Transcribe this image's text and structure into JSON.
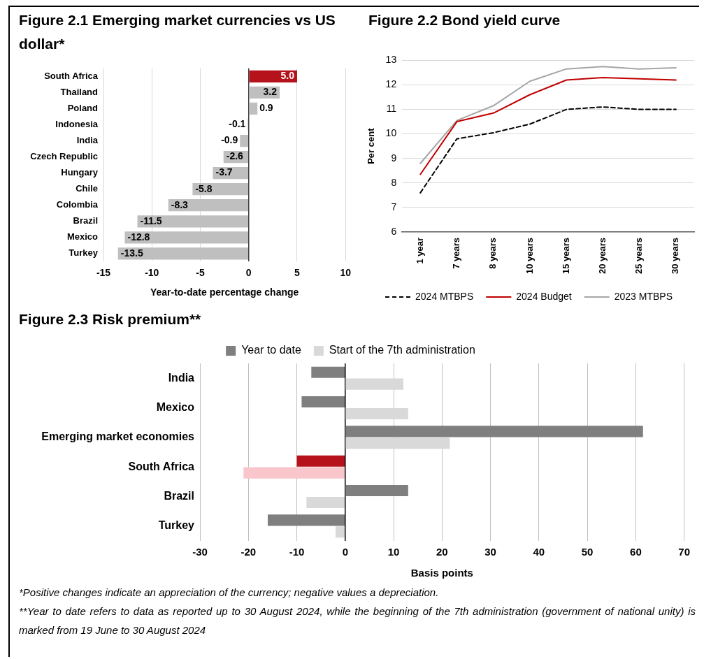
{
  "chart_data": [
    {
      "type": "bar",
      "title": "Figure 2.1 Emerging market currencies vs US dollar*",
      "orientation": "horizontal",
      "categories": [
        "South Africa",
        "Thailand",
        "Poland",
        "Indonesia",
        "India",
        "Czech Republic",
        "Hungary",
        "Chile",
        "Colombia",
        "Brazil",
        "Mexico",
        "Turkey"
      ],
      "values": [
        5.0,
        3.2,
        0.9,
        -0.1,
        -0.9,
        -2.6,
        -3.7,
        -5.8,
        -8.3,
        -11.5,
        -12.8,
        -13.5
      ],
      "value_labels": [
        "5.0",
        "3.2",
        "0.9",
        "-0.1",
        "-0.9",
        "-2.6",
        "-3.7",
        "-5.8",
        "-8.3",
        "-11.5",
        "-12.8",
        "-13.5"
      ],
      "colors": [
        "#b5121b",
        "#bfbfbf",
        "#bfbfbf",
        "#bfbfbf",
        "#bfbfbf",
        "#bfbfbf",
        "#bfbfbf",
        "#bfbfbf",
        "#bfbfbf",
        "#bfbfbf",
        "#bfbfbf",
        "#bfbfbf"
      ],
      "xlabel": "Year-to-date percentage change",
      "xlim": [
        -15,
        10
      ],
      "xticks": [
        -15,
        -10,
        -5,
        0,
        5,
        10
      ],
      "grid": "x"
    },
    {
      "type": "line",
      "title": "Figure 2.2 Bond yield curve",
      "categories": [
        "1 year",
        "7 years",
        "8 years",
        "10 years",
        "15 years",
        "20 years",
        "25 years",
        "30 years"
      ],
      "series": [
        {
          "name": "2024 MTBPS",
          "color": "#000000",
          "line_style": "dashed",
          "values": [
            7.6,
            9.8,
            10.05,
            10.4,
            11.0,
            11.1,
            11.0,
            11.0
          ]
        },
        {
          "name": "2024 Budget",
          "color": "#c00000",
          "values": [
            8.35,
            10.5,
            10.85,
            11.6,
            12.2,
            12.3,
            12.25,
            12.2
          ]
        },
        {
          "name": "2023 MTBPS",
          "color": "#a6a6a6",
          "values": [
            8.8,
            10.55,
            11.15,
            12.15,
            12.65,
            12.75,
            12.65,
            12.7
          ]
        }
      ],
      "ylabel": "Per cent",
      "ylim": [
        6,
        13
      ],
      "yticks": [
        6,
        7,
        8,
        9,
        10,
        11,
        12,
        13
      ],
      "grid": "y",
      "legend": "bottom",
      "marker": "none",
      "line_style": "solid"
    },
    {
      "type": "bar",
      "title": "Figure 2.3 Risk premium**",
      "orientation": "horizontal",
      "categories": [
        "India",
        "Mexico",
        "Emerging market economies",
        "South Africa",
        "Brazil",
        "Turkey"
      ],
      "series": [
        {
          "name": "Year to date",
          "color": "#7f7f7f",
          "colors": [
            "#7f7f7f",
            "#7f7f7f",
            "#7f7f7f",
            "#b5121b",
            "#7f7f7f",
            "#7f7f7f"
          ],
          "values": [
            -7,
            -9,
            61.5,
            -10,
            13,
            -16
          ]
        },
        {
          "name": "Start of the 7th administration",
          "color": "#d9d9d9",
          "colors": [
            "#d9d9d9",
            "#d9d9d9",
            "#d9d9d9",
            "#f8c6cb",
            "#d9d9d9",
            "#d9d9d9"
          ],
          "values": [
            12,
            13,
            21.6,
            -21,
            -8,
            -2
          ]
        }
      ],
      "xlabel": "Basis points",
      "xlim": [
        -30,
        70
      ],
      "xticks": [
        -30,
        -20,
        -10,
        0,
        10,
        20,
        30,
        40,
        50,
        60,
        70
      ],
      "grid": "x",
      "legend": "top",
      "annotations": [
        "*Positive changes indicate an appreciation of the currency; negative values a depreciation.",
        "**Year to date refers to data as reported up to 30 August 2024, while the beginning of the 7th administration (government of national unity) is marked from 19 June to 30 August 2024"
      ]
    }
  ]
}
